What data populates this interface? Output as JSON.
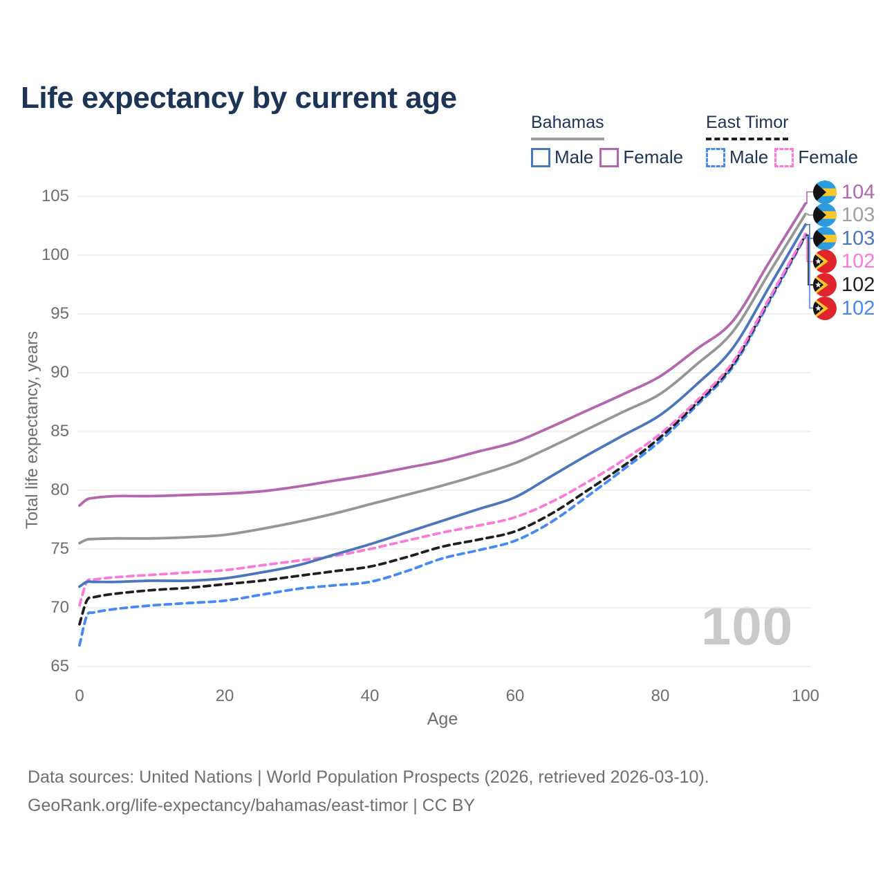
{
  "title": "Life expectancy by current age",
  "watermark": "100",
  "colors": {
    "title": "#1c3557",
    "legend_text": "#1c3557",
    "axis_text": "#6e6e6e",
    "grid": "#ebebeb",
    "watermark": "#c9c9c9",
    "footer_text": "#6f6f6f",
    "bahamas_underline": "#9a9a9a",
    "east_timor_underline": "#1f1f1f"
  },
  "legend": {
    "groups": [
      {
        "name": "Bahamas",
        "line_style": "solid",
        "underline_color": "#9a9a9a",
        "items": [
          {
            "label": "Male",
            "color": "#4a76bc",
            "dashed": false
          },
          {
            "label": "Female",
            "color": "#b267ae",
            "dashed": false
          }
        ]
      },
      {
        "name": "East Timor",
        "line_style": "dashed",
        "underline_color": "#1f1f1f",
        "items": [
          {
            "label": "Male",
            "color": "#4689f4",
            "dashed": true
          },
          {
            "label": "Female",
            "color": "#fb7ad9",
            "dashed": true
          }
        ]
      }
    ]
  },
  "y_axis": {
    "title": "Total life expectancy, years",
    "ticks": [
      65,
      70,
      75,
      80,
      85,
      90,
      95,
      100,
      105
    ],
    "range": [
      65,
      105
    ]
  },
  "x_axis": {
    "title": "Age",
    "ticks": [
      0,
      20,
      40,
      60,
      80,
      100
    ],
    "range": [
      0,
      100
    ]
  },
  "end_labels": [
    {
      "value": "104",
      "flag": "bahamas",
      "color": "#b267ae"
    },
    {
      "value": "103",
      "flag": "bahamas",
      "color": "#a0a0a0"
    },
    {
      "value": "103",
      "flag": "bahamas",
      "color": "#4a76bc"
    },
    {
      "value": "102",
      "flag": "east-timor",
      "color": "#fb7ad9"
    },
    {
      "value": "102",
      "flag": "east-timor",
      "color": "#1f1f1f"
    },
    {
      "value": "102",
      "flag": "east-timor",
      "color": "#4689f4"
    }
  ],
  "footer": {
    "line1": "Data sources: United Nations | World Population Prospects (2026, retrieved 2026-03-10).",
    "line2": "GeoRank.org/life-expectancy/bahamas/east-timor | CC BY"
  },
  "chart_data": {
    "type": "line",
    "title": "Life expectancy by current age",
    "xlabel": "Age",
    "ylabel": "Total life expectancy, years",
    "xlim": [
      0,
      100
    ],
    "ylim": [
      65,
      105
    ],
    "grid": "horizontal",
    "legend_position": "top-right",
    "x": [
      0,
      1,
      2,
      5,
      10,
      15,
      20,
      25,
      30,
      35,
      40,
      45,
      50,
      55,
      60,
      65,
      70,
      75,
      80,
      85,
      90,
      95,
      100
    ],
    "series": [
      {
        "name": "Bahamas Female",
        "color": "#b267ae",
        "dash": "solid",
        "values": [
          78.7,
          79.2,
          79.35,
          79.5,
          79.5,
          79.6,
          79.7,
          79.9,
          80.3,
          80.8,
          81.3,
          81.9,
          82.5,
          83.3,
          84.1,
          85.4,
          86.8,
          88.2,
          89.7,
          92.0,
          94.4,
          99.4,
          104.4
        ]
      },
      {
        "name": "Bahamas All",
        "color": "#969696",
        "dash": "solid",
        "values": [
          75.5,
          75.8,
          75.85,
          75.9,
          75.9,
          76.0,
          76.2,
          76.7,
          77.3,
          78.0,
          78.8,
          79.6,
          80.4,
          81.3,
          82.3,
          83.7,
          85.2,
          86.7,
          88.2,
          90.7,
          93.5,
          98.5,
          103.5
        ]
      },
      {
        "name": "Bahamas Male",
        "color": "#4a76bc",
        "dash": "solid",
        "values": [
          71.8,
          72.2,
          72.2,
          72.2,
          72.3,
          72.3,
          72.5,
          73.0,
          73.6,
          74.5,
          75.4,
          76.4,
          77.4,
          78.4,
          79.4,
          81.2,
          83.0,
          84.7,
          86.4,
          89.0,
          92.1,
          97.3,
          102.6
        ]
      },
      {
        "name": "East Timor Female",
        "color": "#fb7ad9",
        "dash": "dashed",
        "values": [
          70.2,
          72.2,
          72.4,
          72.6,
          72.8,
          73.0,
          73.2,
          73.6,
          74.0,
          74.4,
          75.0,
          75.7,
          76.4,
          77.0,
          77.7,
          79.0,
          80.7,
          82.6,
          84.8,
          87.6,
          90.9,
          96.3,
          101.8
        ]
      },
      {
        "name": "East Timor All",
        "color": "#1f1f1f",
        "dash": "dashed",
        "values": [
          68.6,
          70.6,
          70.9,
          71.2,
          71.5,
          71.7,
          72.0,
          72.3,
          72.7,
          73.1,
          73.5,
          74.3,
          75.2,
          75.8,
          76.5,
          78.0,
          80.0,
          82.1,
          84.5,
          87.4,
          90.7,
          96.2,
          101.7
        ]
      },
      {
        "name": "East Timor Male",
        "color": "#4689f4",
        "dash": "dashed",
        "values": [
          66.8,
          69.3,
          69.6,
          69.9,
          70.2,
          70.4,
          70.6,
          71.1,
          71.6,
          71.9,
          72.2,
          73.1,
          74.2,
          74.9,
          75.7,
          77.3,
          79.5,
          81.8,
          84.2,
          87.2,
          90.5,
          96.0,
          101.6
        ]
      }
    ]
  }
}
